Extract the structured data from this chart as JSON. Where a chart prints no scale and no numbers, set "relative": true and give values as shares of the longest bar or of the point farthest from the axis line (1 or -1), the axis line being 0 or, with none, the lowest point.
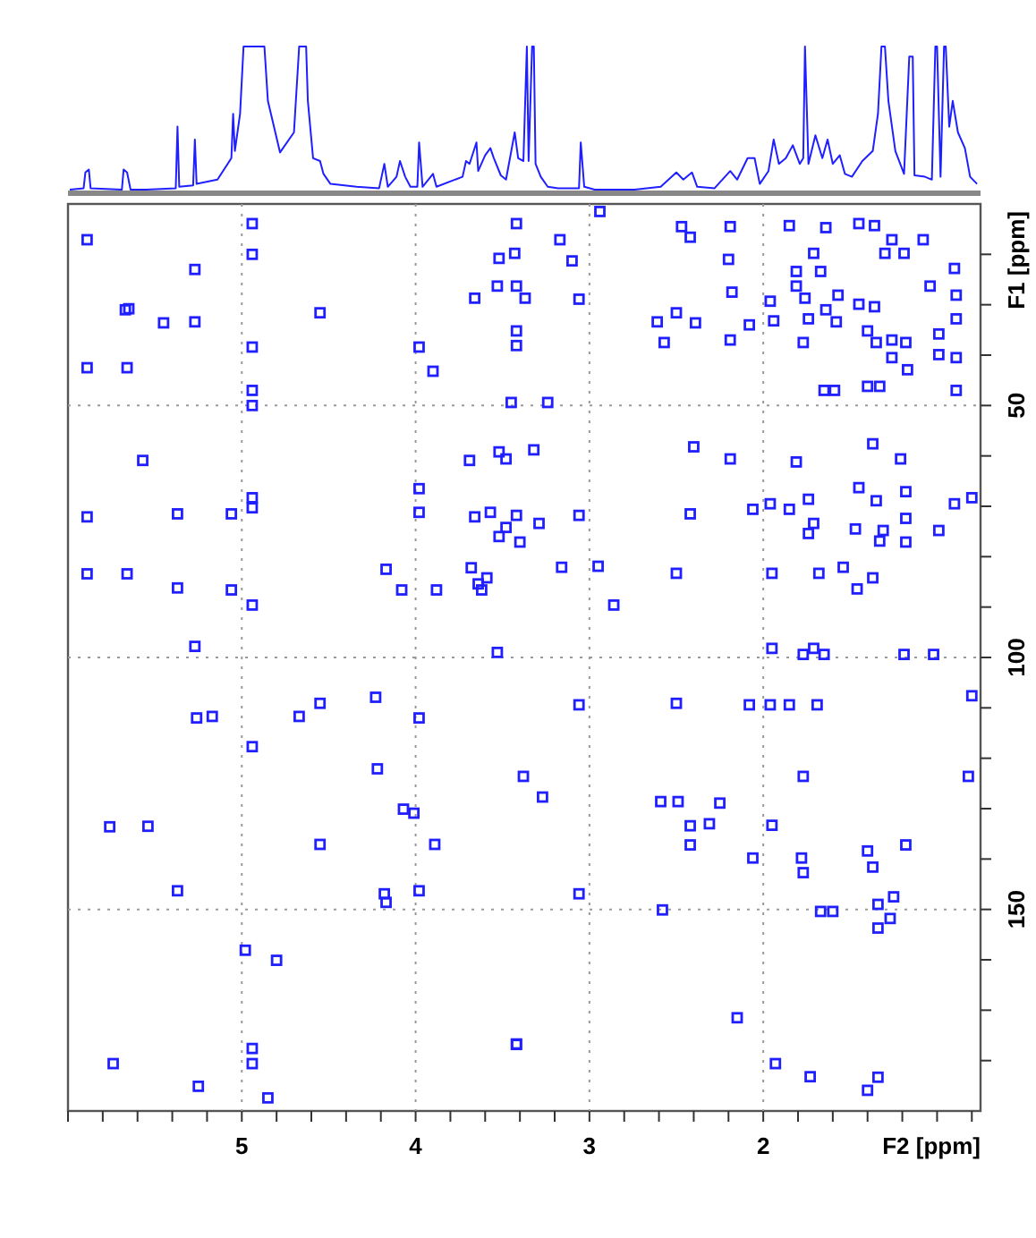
{
  "chart_data": [
    {
      "type": "line",
      "relative": true,
      "xlim": [
        6.0,
        0.75
      ],
      "color": "#1f1fff",
      "x": [
        5.99,
        5.91,
        5.9,
        5.88,
        5.87,
        5.69,
        5.68,
        5.66,
        5.64,
        5.55,
        5.38,
        5.37,
        5.36,
        5.28,
        5.27,
        5.26,
        5.14,
        5.06,
        5.05,
        5.04,
        5.01,
        4.99,
        4.98,
        4.87,
        4.85,
        4.78,
        4.7,
        4.67,
        4.63,
        4.62,
        4.59,
        4.55,
        4.53,
        4.49,
        4.34,
        4.21,
        4.18,
        4.16,
        4.11,
        4.09,
        4.06,
        4.03,
        3.99,
        3.98,
        3.96,
        3.9,
        3.88,
        3.73,
        3.71,
        3.69,
        3.65,
        3.64,
        3.6,
        3.57,
        3.55,
        3.51,
        3.48,
        3.43,
        3.41,
        3.38,
        3.36,
        3.35,
        3.33,
        3.32,
        3.31,
        3.28,
        3.24,
        3.18,
        3.06,
        3.05,
        3.03,
        2.97,
        2.74,
        2.59,
        2.5,
        2.46,
        2.41,
        2.38,
        2.28,
        2.19,
        2.15,
        2.09,
        2.05,
        2.02,
        1.97,
        1.94,
        1.91,
        1.87,
        1.83,
        1.79,
        1.77,
        1.76,
        1.74,
        1.7,
        1.66,
        1.63,
        1.6,
        1.56,
        1.53,
        1.49,
        1.43,
        1.37,
        1.34,
        1.32,
        1.3,
        1.28,
        1.24,
        1.19,
        1.16,
        1.14,
        1.13,
        1.07,
        1.03,
        1.01,
        1.0,
        0.98,
        0.96,
        0.95,
        0.93,
        0.91,
        0.88,
        0.84,
        0.81,
        0.77
      ],
      "values": [
        0,
        0.01,
        0.12,
        0.14,
        0.01,
        0,
        0.14,
        0.12,
        0,
        0,
        0.01,
        0.44,
        0.02,
        0.03,
        0.35,
        0.04,
        0.07,
        0.22,
        0.53,
        0.27,
        0.53,
        1,
        1,
        1,
        0.62,
        0.26,
        0.4,
        1,
        1,
        0.62,
        0.22,
        0.2,
        0.11,
        0.04,
        0.02,
        0.01,
        0.18,
        0.02,
        0.09,
        0.2,
        0.09,
        0.02,
        0.02,
        0.33,
        0.02,
        0.11,
        0.02,
        0.09,
        0.2,
        0.18,
        0.33,
        0.13,
        0.24,
        0.29,
        0.22,
        0.1,
        0.07,
        0.4,
        0.22,
        0.2,
        1,
        0.2,
        1,
        1,
        0.18,
        0.09,
        0.02,
        0.01,
        0.01,
        0.33,
        0.02,
        0,
        0,
        0.02,
        0.12,
        0.07,
        0.12,
        0.02,
        0.01,
        0.13,
        0.07,
        0.22,
        0.22,
        0.04,
        0.13,
        0.35,
        0.18,
        0.22,
        0.31,
        0.18,
        0.22,
        1,
        0.18,
        0.38,
        0.22,
        0.35,
        0.18,
        0.24,
        0.11,
        0.09,
        0.2,
        0.27,
        0.53,
        1,
        1,
        0.62,
        0.27,
        0.11,
        0.93,
        0.93,
        0.1,
        0.09,
        0.07,
        1,
        1,
        0.09,
        1,
        1,
        0.44,
        0.62,
        0.4,
        0.29,
        0.09,
        0.04
      ]
    },
    {
      "type": "scatter",
      "xlabel": "F2 [ppm]",
      "ylabel": "F1 [ppm]",
      "xlim": [
        6.0,
        0.75
      ],
      "ylim": [
        190,
        10
      ],
      "grid": true,
      "marker": "square",
      "color": "#1f1fff",
      "xticks": [
        {
          "value": 6,
          "label": null
        },
        {
          "value": 5.8,
          "label": null
        },
        {
          "value": 5.6,
          "label": null
        },
        {
          "value": 5.4,
          "label": null
        },
        {
          "value": 5.2,
          "label": null
        },
        5,
        {
          "value": 4.8,
          "label": null
        },
        {
          "value": 4.6,
          "label": null
        },
        {
          "value": 4.4,
          "label": null
        },
        {
          "value": 4.2,
          "label": null
        },
        4,
        {
          "value": 3.8,
          "label": null
        },
        {
          "value": 3.6,
          "label": null
        },
        {
          "value": 3.4,
          "label": null
        },
        {
          "value": 3.2,
          "label": null
        },
        3,
        {
          "value": 2.8,
          "label": null
        },
        {
          "value": 2.6,
          "label": null
        },
        {
          "value": 2.4,
          "label": null
        },
        {
          "value": 2.2,
          "label": null
        },
        2,
        {
          "value": 1.8,
          "label": null
        },
        {
          "value": 1.6,
          "label": null
        },
        {
          "value": 1.4,
          "label": null
        },
        {
          "value": 1.2,
          "label": null
        },
        {
          "value": 1,
          "label": null
        },
        {
          "value": 0.8,
          "label": null
        }
      ],
      "yticks": [
        {
          "value": 20,
          "label": null
        },
        {
          "value": 30,
          "label": null
        },
        {
          "value": 40,
          "label": null
        },
        50,
        {
          "value": 60,
          "label": null
        },
        {
          "value": 70,
          "label": null
        },
        {
          "value": 80,
          "label": null
        },
        {
          "value": 90,
          "label": null
        },
        100,
        {
          "value": 110,
          "label": null
        },
        {
          "value": 120,
          "label": null
        },
        {
          "value": 130,
          "label": null
        },
        {
          "value": 140,
          "label": null
        },
        150,
        {
          "value": 160,
          "label": null
        },
        {
          "value": 170,
          "label": null
        },
        {
          "value": 180,
          "label": null
        }
      ],
      "x": [
        5.89,
        5.27,
        4.94,
        4.94,
        5.67,
        5.65,
        5.45,
        5.27,
        4.55,
        5.89,
        5.66,
        4.94,
        3.98,
        3.9,
        4.94,
        4.94,
        5.57,
        5.89,
        5.37,
        5.06,
        4.94,
        4.94,
        3.98,
        3.98,
        5.89,
        5.66,
        4.17,
        5.37,
        5.06,
        4.94,
        4.08,
        3.88,
        3.66,
        3.57,
        3.52,
        3.69,
        3.52,
        3.66,
        3.53,
        3.52,
        3.64,
        3.59,
        3.62,
        3.68,
        5.27,
        3.53,
        3.42,
        3.43,
        3.42,
        3.37,
        3.42,
        3.42,
        2.94,
        3.17,
        3.1,
        3.06,
        2.42,
        2.47,
        2.19,
        2.2,
        2.18,
        2.5,
        2.61,
        2.39,
        2.57,
        2.19,
        2.08,
        1.96,
        1.94,
        1.85,
        1.64,
        1.45,
        1.36,
        1.26,
        1.08,
        1.3,
        1.19,
        1.71,
        1.81,
        1.67,
        1.81,
        1.76,
        1.57,
        1.74,
        1.64,
        1.58,
        1.77,
        1.45,
        1.36,
        1.4,
        1.35,
        1.26,
        1.18,
        1.26,
        1.17,
        1.04,
        0.9,
        0.89,
        0.89,
        0.99,
        0.99,
        0.89,
        0.89,
        1.4,
        1.33,
        1.65,
        1.59,
        3.45,
        3.24,
        3.32,
        3.48,
        2.4,
        2.19,
        1.81,
        1.37,
        1.21,
        1.45,
        1.35,
        1.18,
        1.18,
        1.18,
        0.99,
        0.9,
        0.8,
        1.74,
        1.85,
        1.96,
        2.06,
        1.74,
        1.71,
        1.47,
        1.31,
        1.33,
        3.42,
        3.48,
        3.29,
        3.06,
        2.42,
        3.4,
        3.16,
        2.95,
        2.5,
        1.95,
        1.68,
        1.54,
        1.46,
        1.37,
        2.86,
        5.26,
        5.17,
        4.67,
        4.55,
        4.23,
        3.98,
        4.94,
        4.22,
        4.07,
        4.01,
        5.76,
        5.54,
        4.55,
        3.89,
        5.37,
        4.18,
        4.17,
        3.98,
        4.98,
        4.8,
        5.74,
        4.94,
        4.94,
        5.25,
        4.85,
        3.42,
        1.95,
        1.77,
        1.71,
        1.65,
        1.19,
        1.02,
        3.06,
        2.5,
        2.08,
        1.96,
        1.85,
        1.69,
        0.8,
        3.38,
        3.27,
        1.77,
        0.82,
        2.59,
        2.49,
        2.25,
        2.42,
        2.31,
        1.95,
        2.42,
        2.06,
        1.78,
        1.77,
        1.4,
        1.37,
        1.18,
        3.06,
        2.58,
        1.67,
        1.6,
        1.34,
        1.25,
        1.27,
        1.34,
        2.15,
        3.42,
        1.93,
        1.73,
        1.4,
        1.34
      ],
      "values": [
        17.1,
        23.0,
        13.9,
        20.0,
        31.0,
        30.8,
        33.6,
        33.4,
        31.6,
        42.5,
        42.5,
        38.4,
        38.4,
        43.2,
        47.0,
        50.0,
        60.9,
        72.1,
        71.5,
        71.5,
        68.3,
        70.3,
        66.5,
        71.2,
        83.4,
        83.4,
        82.5,
        86.2,
        86.6,
        89.6,
        86.6,
        86.6,
        72.1,
        71.2,
        76.0,
        60.9,
        59.2,
        28.7,
        26.3,
        20.8,
        85.4,
        84.2,
        86.6,
        82.2,
        97.8,
        99.0,
        13.9,
        19.8,
        26.3,
        28.7,
        35.2,
        38.1,
        11.5,
        17.1,
        21.3,
        28.9,
        16.6,
        14.5,
        14.5,
        21.0,
        27.5,
        31.6,
        33.4,
        33.6,
        37.5,
        37.0,
        34.0,
        29.3,
        33.2,
        14.3,
        14.7,
        13.9,
        14.3,
        17.1,
        17.1,
        19.8,
        19.8,
        19.8,
        23.4,
        23.4,
        26.3,
        28.7,
        28.1,
        32.8,
        31.0,
        33.4,
        37.5,
        29.9,
        30.4,
        35.2,
        37.5,
        37.0,
        37.5,
        40.5,
        42.9,
        26.3,
        22.8,
        28.1,
        32.8,
        35.8,
        39.9,
        40.5,
        47.0,
        46.2,
        46.2,
        47.0,
        47.0,
        49.4,
        49.4,
        58.8,
        60.6,
        58.2,
        60.6,
        61.2,
        57.6,
        60.6,
        66.3,
        68.9,
        67.1,
        72.4,
        77.1,
        74.8,
        69.5,
        68.3,
        68.6,
        70.6,
        69.5,
        70.6,
        75.4,
        73.4,
        74.5,
        74.8,
        76.9,
        71.8,
        74.2,
        73.4,
        71.8,
        71.5,
        77.1,
        82.1,
        81.9,
        83.3,
        83.3,
        83.3,
        82.1,
        86.4,
        84.2,
        89.6,
        112.0,
        111.7,
        111.7,
        109.1,
        107.9,
        112.0,
        117.7,
        122.1,
        130.1,
        130.9,
        133.6,
        133.5,
        137.1,
        137.1,
        146.3,
        146.9,
        148.6,
        146.3,
        158.1,
        160.1,
        180.6,
        177.6,
        180.6,
        185.1,
        187.4,
        176.7,
        98.2,
        99.4,
        98.2,
        99.4,
        99.4,
        99.4,
        109.4,
        109.1,
        109.4,
        109.4,
        109.4,
        109.4,
        107.6,
        123.6,
        127.7,
        123.6,
        123.6,
        128.6,
        128.6,
        128.9,
        133.4,
        133.0,
        133.3,
        137.2,
        139.8,
        139.8,
        142.7,
        138.4,
        141.6,
        137.2,
        146.9,
        150.1,
        150.4,
        150.4,
        149.0,
        147.5,
        151.8,
        153.7,
        171.5,
        176.8,
        180.6,
        183.2,
        185.9,
        183.3
      ]
    }
  ]
}
